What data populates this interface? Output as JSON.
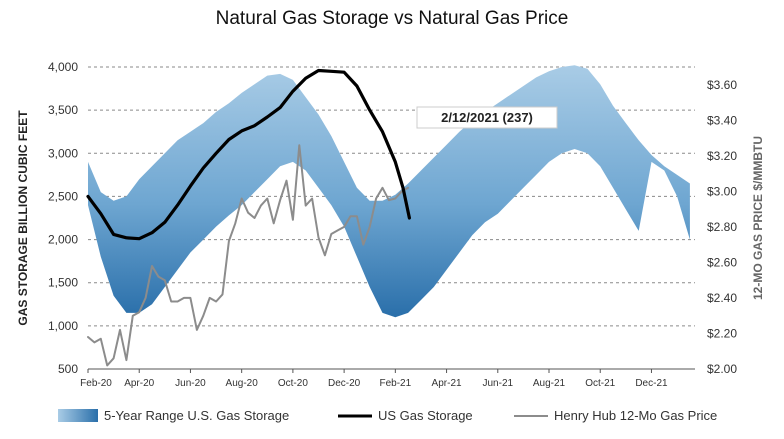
{
  "chart_data": {
    "type": "line",
    "title": "Natural Gas Storage vs Natural Gas Price",
    "ylabel": "GAS STORAGE BILLION CUBIC FEET",
    "ylabel_right": "12-MO GAS PRICE $/MMBTU",
    "ylim": [
      500,
      4000
    ],
    "ylim_right": [
      2.0,
      3.7
    ],
    "yticks": [
      "4,000",
      "3,500",
      "3,000",
      "2,500",
      "2,000",
      "1,500",
      "1,000",
      "500"
    ],
    "yticks_right": [
      "$3.60",
      "$3.40",
      "$3.20",
      "$3.00",
      "$2.80",
      "$2.60",
      "$2.40",
      "$2.20",
      "$2.00"
    ],
    "x_categories": [
      "Feb-20",
      "Apr-20",
      "Jun-20",
      "Aug-20",
      "Oct-20",
      "Dec-20",
      "Feb-21",
      "Apr-21",
      "Jun-21",
      "Aug-21",
      "Oct-21",
      "Dec-21"
    ],
    "grid": "horizontal dashed",
    "legend_position": "bottom",
    "annotation": "2/12/2021  (237)",
    "colors": {
      "range_band": "#7fb0d6",
      "range_band_dark": "#2f73ae",
      "storage_line": "#000000",
      "price_line": "#8c8c8c"
    },
    "series": [
      {
        "name": "5-Year Range U.S. Gas Storage",
        "axis": "left",
        "kind": "range",
        "x": [
          0,
          0.5,
          1,
          1.5,
          2,
          2.5,
          3,
          3.5,
          4,
          4.5,
          5,
          5.5,
          6,
          6.5,
          7,
          7.5,
          8,
          8.5,
          9,
          9.5,
          10,
          10.5,
          11,
          11.5,
          12,
          12.5,
          13,
          13.5,
          14,
          14.5,
          15,
          15.5,
          16,
          16.5,
          17,
          17.5,
          18,
          18.5,
          19,
          19.5,
          20,
          20.5,
          21,
          21.5,
          22,
          22.5,
          23,
          23.5
        ],
        "upper": [
          2900,
          2550,
          2450,
          2500,
          2700,
          2850,
          3000,
          3150,
          3250,
          3350,
          3480,
          3580,
          3700,
          3800,
          3900,
          3920,
          3850,
          3650,
          3450,
          3200,
          2900,
          2600,
          2450,
          2450,
          2520,
          2650,
          2800,
          2950,
          3100,
          3250,
          3380,
          3480,
          3580,
          3680,
          3780,
          3880,
          3950,
          4000,
          4020,
          3980,
          3800,
          3550,
          3350,
          3150,
          2980,
          2850,
          2750,
          2650
        ],
        "lower": [
          2400,
          1800,
          1350,
          1150,
          1150,
          1250,
          1450,
          1650,
          1850,
          2000,
          2150,
          2280,
          2400,
          2550,
          2700,
          2850,
          2900,
          2800,
          2600,
          2400,
          2150,
          1800,
          1450,
          1150,
          1100,
          1150,
          1300,
          1450,
          1650,
          1850,
          2050,
          2200,
          2300,
          2450,
          2600,
          2750,
          2900,
          3000,
          3050,
          3000,
          2850,
          2600,
          2350,
          2100,
          2900,
          2800,
          2500,
          2000
        ]
      },
      {
        "name": "US Gas Storage",
        "axis": "left",
        "x": [
          0,
          0.5,
          1,
          1.5,
          2,
          2.5,
          3,
          3.5,
          4,
          4.5,
          5,
          5.5,
          6,
          6.5,
          7,
          7.5,
          8,
          8.5,
          9,
          9.5,
          10,
          10.5,
          11,
          11.5,
          12,
          12.3,
          12.55
        ],
        "y": [
          2500,
          2300,
          2060,
          2020,
          2010,
          2080,
          2200,
          2400,
          2620,
          2830,
          3000,
          3160,
          3260,
          3320,
          3420,
          3530,
          3720,
          3870,
          3960,
          3950,
          3940,
          3780,
          3500,
          3250,
          2900,
          2600,
          2250
        ]
      },
      {
        "name": "Henry Hub 12-Mo Gas Price",
        "axis": "right",
        "x": [
          0,
          0.25,
          0.5,
          0.75,
          1,
          1.25,
          1.5,
          1.75,
          2,
          2.25,
          2.5,
          2.75,
          3,
          3.25,
          3.5,
          3.75,
          4,
          4.25,
          4.5,
          4.75,
          5,
          5.25,
          5.5,
          5.75,
          6,
          6.25,
          6.5,
          6.75,
          7,
          7.25,
          7.5,
          7.75,
          8,
          8.25,
          8.5,
          8.75,
          9,
          9.25,
          9.5,
          9.75,
          10,
          10.25,
          10.5,
          10.75,
          11,
          11.25,
          11.5,
          11.75,
          12,
          12.25,
          12.5
        ],
        "y": [
          2.18,
          2.15,
          2.17,
          2.02,
          2.06,
          2.22,
          2.05,
          2.3,
          2.32,
          2.4,
          2.58,
          2.52,
          2.5,
          2.38,
          2.38,
          2.4,
          2.4,
          2.22,
          2.3,
          2.4,
          2.38,
          2.42,
          2.72,
          2.82,
          2.96,
          2.88,
          2.85,
          2.92,
          2.96,
          2.82,
          2.95,
          3.06,
          2.84,
          3.26,
          2.92,
          2.96,
          2.74,
          2.64,
          2.76,
          2.78,
          2.8,
          2.86,
          2.86,
          2.7,
          2.8,
          2.96,
          3.02,
          2.95,
          2.96,
          3.0,
          3.02
        ]
      }
    ]
  }
}
